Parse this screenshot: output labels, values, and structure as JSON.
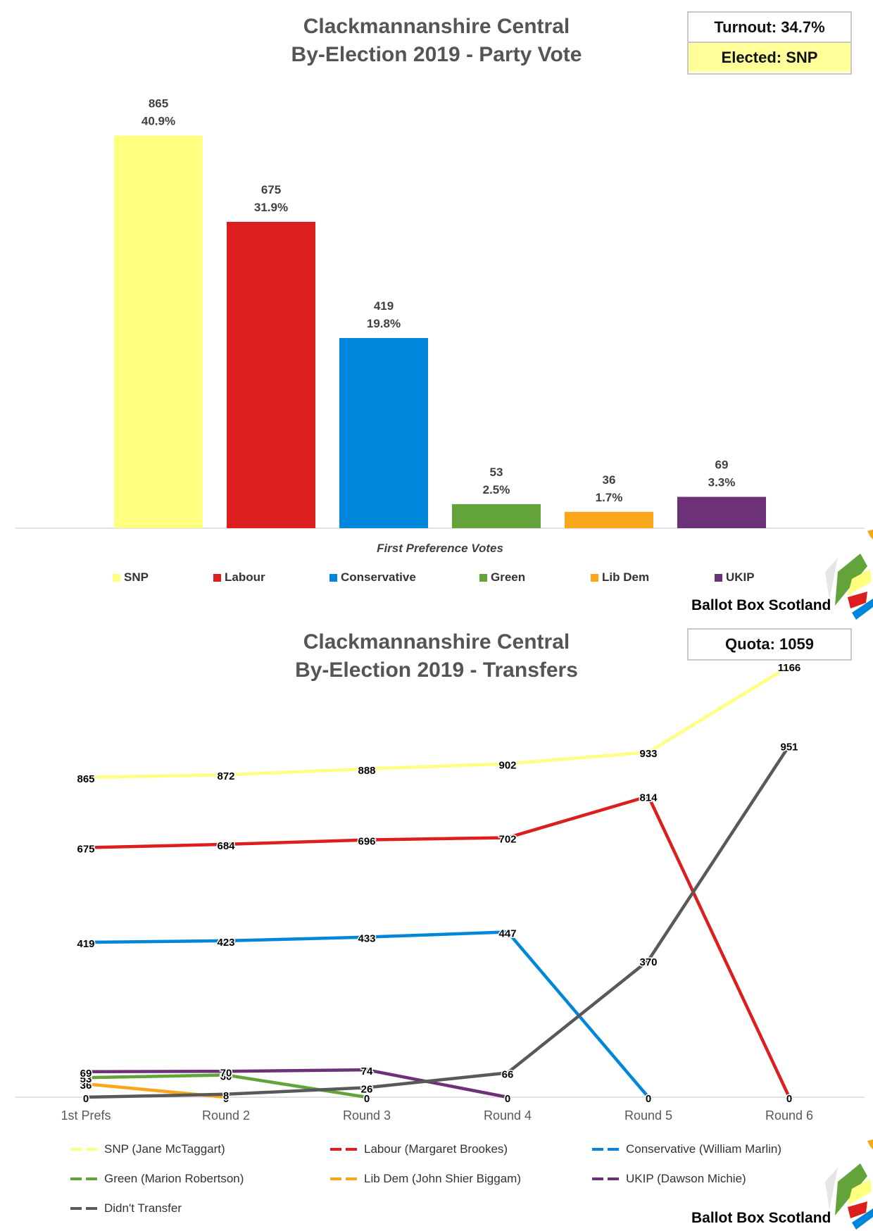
{
  "party_chart": {
    "title_line1": "Clackmannanshire Central",
    "title_line2": "By-Election 2019 - Party Vote",
    "turnout_label": "Turnout: 34.7%",
    "elected_label": "Elected: SNP",
    "brand": "Ballot Box Scotland"
  },
  "transfer_chart": {
    "title_line1": "Clackmannanshire Central",
    "title_line2": "By-Election 2019 - Transfers",
    "quota_label": "Quota: 1059",
    "brand": "Ballot Box Scotland"
  },
  "chart_data": [
    {
      "type": "bar",
      "title": "Clackmannanshire Central By-Election 2019 - Party Vote",
      "xlabel": "First Preference Votes",
      "categories": [
        "SNP",
        "Labour",
        "Conservative",
        "Green",
        "Lib Dem",
        "UKIP"
      ],
      "values": [
        865,
        675,
        419,
        53,
        36,
        69
      ],
      "percent_labels": [
        "40.9%",
        "31.9%",
        "19.8%",
        "2.5%",
        "1.7%",
        "3.3%"
      ],
      "colors": [
        "#ffff80",
        "#dc1e1e",
        "#0087dc",
        "#62a439",
        "#faa61a",
        "#6d3177"
      ],
      "ylim": [
        0,
        900
      ],
      "grid": false,
      "legend": "bottom"
    },
    {
      "type": "line",
      "title": "Clackmannanshire Central By-Election 2019 - Transfers",
      "x": [
        "1st Prefs",
        "Round 2",
        "Round 3",
        "Round 4",
        "Round 5",
        "Round 6"
      ],
      "ylim": [
        0,
        1200
      ],
      "grid": false,
      "legend": "bottom",
      "series": [
        {
          "name": "SNP (Jane McTaggart)",
          "color": "#ffff80",
          "values": [
            865,
            872,
            888,
            902,
            933,
            1166
          ]
        },
        {
          "name": "Labour (Margaret Brookes)",
          "color": "#dc1e1e",
          "values": [
            675,
            684,
            696,
            702,
            814,
            0
          ]
        },
        {
          "name": "Conservative (William Marlin)",
          "color": "#0087dc",
          "values": [
            419,
            423,
            433,
            447,
            0,
            null
          ]
        },
        {
          "name": "Green (Marion Robertson)",
          "color": "#62a439",
          "values": [
            53,
            60,
            0,
            null,
            null,
            null
          ]
        },
        {
          "name": "Lib Dem (John Shier Biggam)",
          "color": "#faa61a",
          "values": [
            36,
            0,
            null,
            null,
            null,
            null
          ]
        },
        {
          "name": "UKIP (Dawson Michie)",
          "color": "#6d3177",
          "values": [
            69,
            70,
            74,
            0,
            null,
            null
          ]
        },
        {
          "name": "Didn't Transfer",
          "color": "#595959",
          "values": [
            0,
            8,
            26,
            66,
            370,
            951
          ]
        }
      ]
    }
  ]
}
